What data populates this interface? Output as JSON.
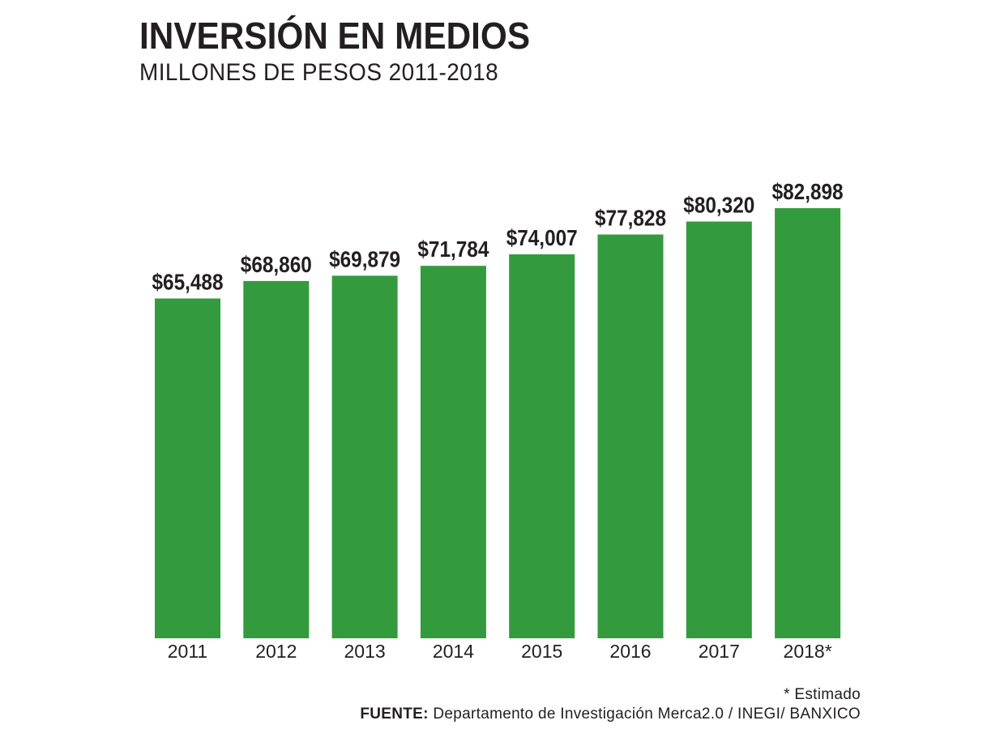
{
  "header": {
    "title": "INVERSIÓN EN MEDIOS",
    "subtitle": "MILLONES DE PESOS 2011-2018"
  },
  "colors": {
    "bar": "#339a3e",
    "text": "#231f20",
    "background": "#ffffff"
  },
  "chart_data": {
    "type": "bar",
    "title": "INVERSIÓN EN MEDIOS",
    "subtitle": "MILLONES DE PESOS 2011-2018",
    "categories": [
      "2011",
      "2012",
      "2013",
      "2014",
      "2015",
      "2016",
      "2017",
      "2018*"
    ],
    "values": [
      65488,
      68860,
      69879,
      71784,
      74007,
      77828,
      80320,
      82898
    ],
    "value_labels": [
      "$65,488",
      "$68,860",
      "$69,879",
      "$71,784",
      "$74,007",
      "$77,828",
      "$80,320",
      "$82,898"
    ],
    "xlabel": "",
    "ylabel": "",
    "ylim": [
      0,
      82898
    ],
    "grid": false,
    "legend": "none"
  },
  "footer": {
    "note": "* Estimado",
    "source_label": "FUENTE:",
    "source_text": " Departamento de Investigación Merca2.0 / INEGI/ BANXICO"
  }
}
